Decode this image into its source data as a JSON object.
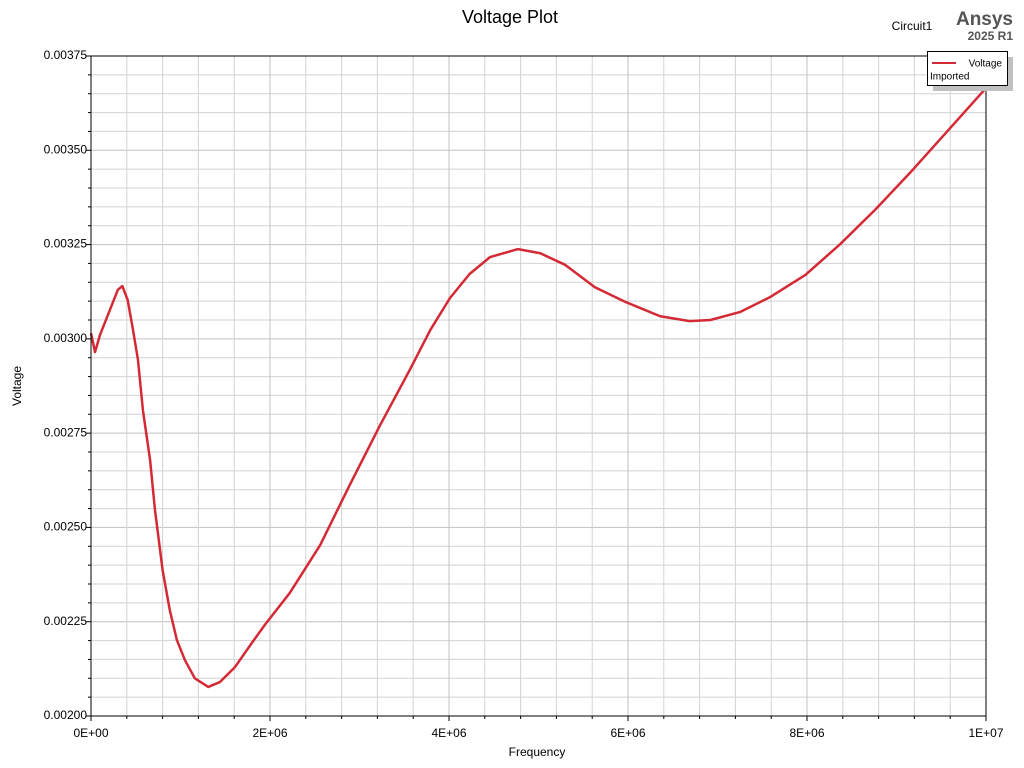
{
  "chart_data": {
    "type": "line",
    "title": "Voltage Plot",
    "design_name": "Circuit1",
    "brand": "Ansys",
    "version": "2025 R1",
    "xlabel": "Frequency",
    "ylabel": "Voltage",
    "legend_note": "Imported",
    "legend": "top-right",
    "grid": true,
    "xlim": [
      0,
      10000000
    ],
    "ylim": [
      0.002,
      0.00375
    ],
    "xticks": [
      {
        "value": 0,
        "label": "0E+00"
      },
      {
        "value": 2000000,
        "label": "2E+06"
      },
      {
        "value": 4000000,
        "label": "4E+06"
      },
      {
        "value": 6000000,
        "label": "6E+06"
      },
      {
        "value": 8000000,
        "label": "8E+06"
      },
      {
        "value": 10000000,
        "label": "1E+07"
      }
    ],
    "yticks": [
      {
        "value": 0.002,
        "label": "0.00200"
      },
      0.00225,
      {
        "value": 0.0025,
        "label": "0.00250"
      },
      0.00275,
      {
        "value": 0.003,
        "label": "0.00300"
      },
      0.00325,
      {
        "value": 0.0035,
        "label": "0.00350"
      },
      0.00375
    ],
    "x": [
      0,
      45000,
      100000,
      210000,
      300000,
      350000,
      410000,
      470000,
      525000,
      580000,
      660000,
      715000,
      800000,
      880000,
      960000,
      1050000,
      1160000,
      1310000,
      1440000,
      1610000,
      1780000,
      1940000,
      2220000,
      2560000,
      2890000,
      3230000,
      3560000,
      3790000,
      4010000,
      4230000,
      4460000,
      4770000,
      5020000,
      5300000,
      5630000,
      5970000,
      6360000,
      6690000,
      6920000,
      7250000,
      7590000,
      7980000,
      8370000,
      8760000,
      9150000,
      9600000,
      10000000
    ],
    "series": [
      {
        "name": "Voltage",
        "color": "#d42a35",
        "values": [
          0.003015,
          0.002965,
          0.00301,
          0.003076,
          0.00313,
          0.00314,
          0.003103,
          0.003023,
          0.002944,
          0.002811,
          0.002679,
          0.002546,
          0.002387,
          0.002281,
          0.002201,
          0.002148,
          0.0021,
          0.002077,
          0.00209,
          0.00213,
          0.002188,
          0.002241,
          0.002326,
          0.002453,
          0.002612,
          0.002771,
          0.002917,
          0.003023,
          0.003108,
          0.003172,
          0.003217,
          0.003238,
          0.003227,
          0.003196,
          0.003137,
          0.003098,
          0.00306,
          0.003047,
          0.00305,
          0.003071,
          0.003111,
          0.003169,
          0.003251,
          0.003342,
          0.00344,
          0.003559,
          0.003665
        ]
      }
    ]
  }
}
